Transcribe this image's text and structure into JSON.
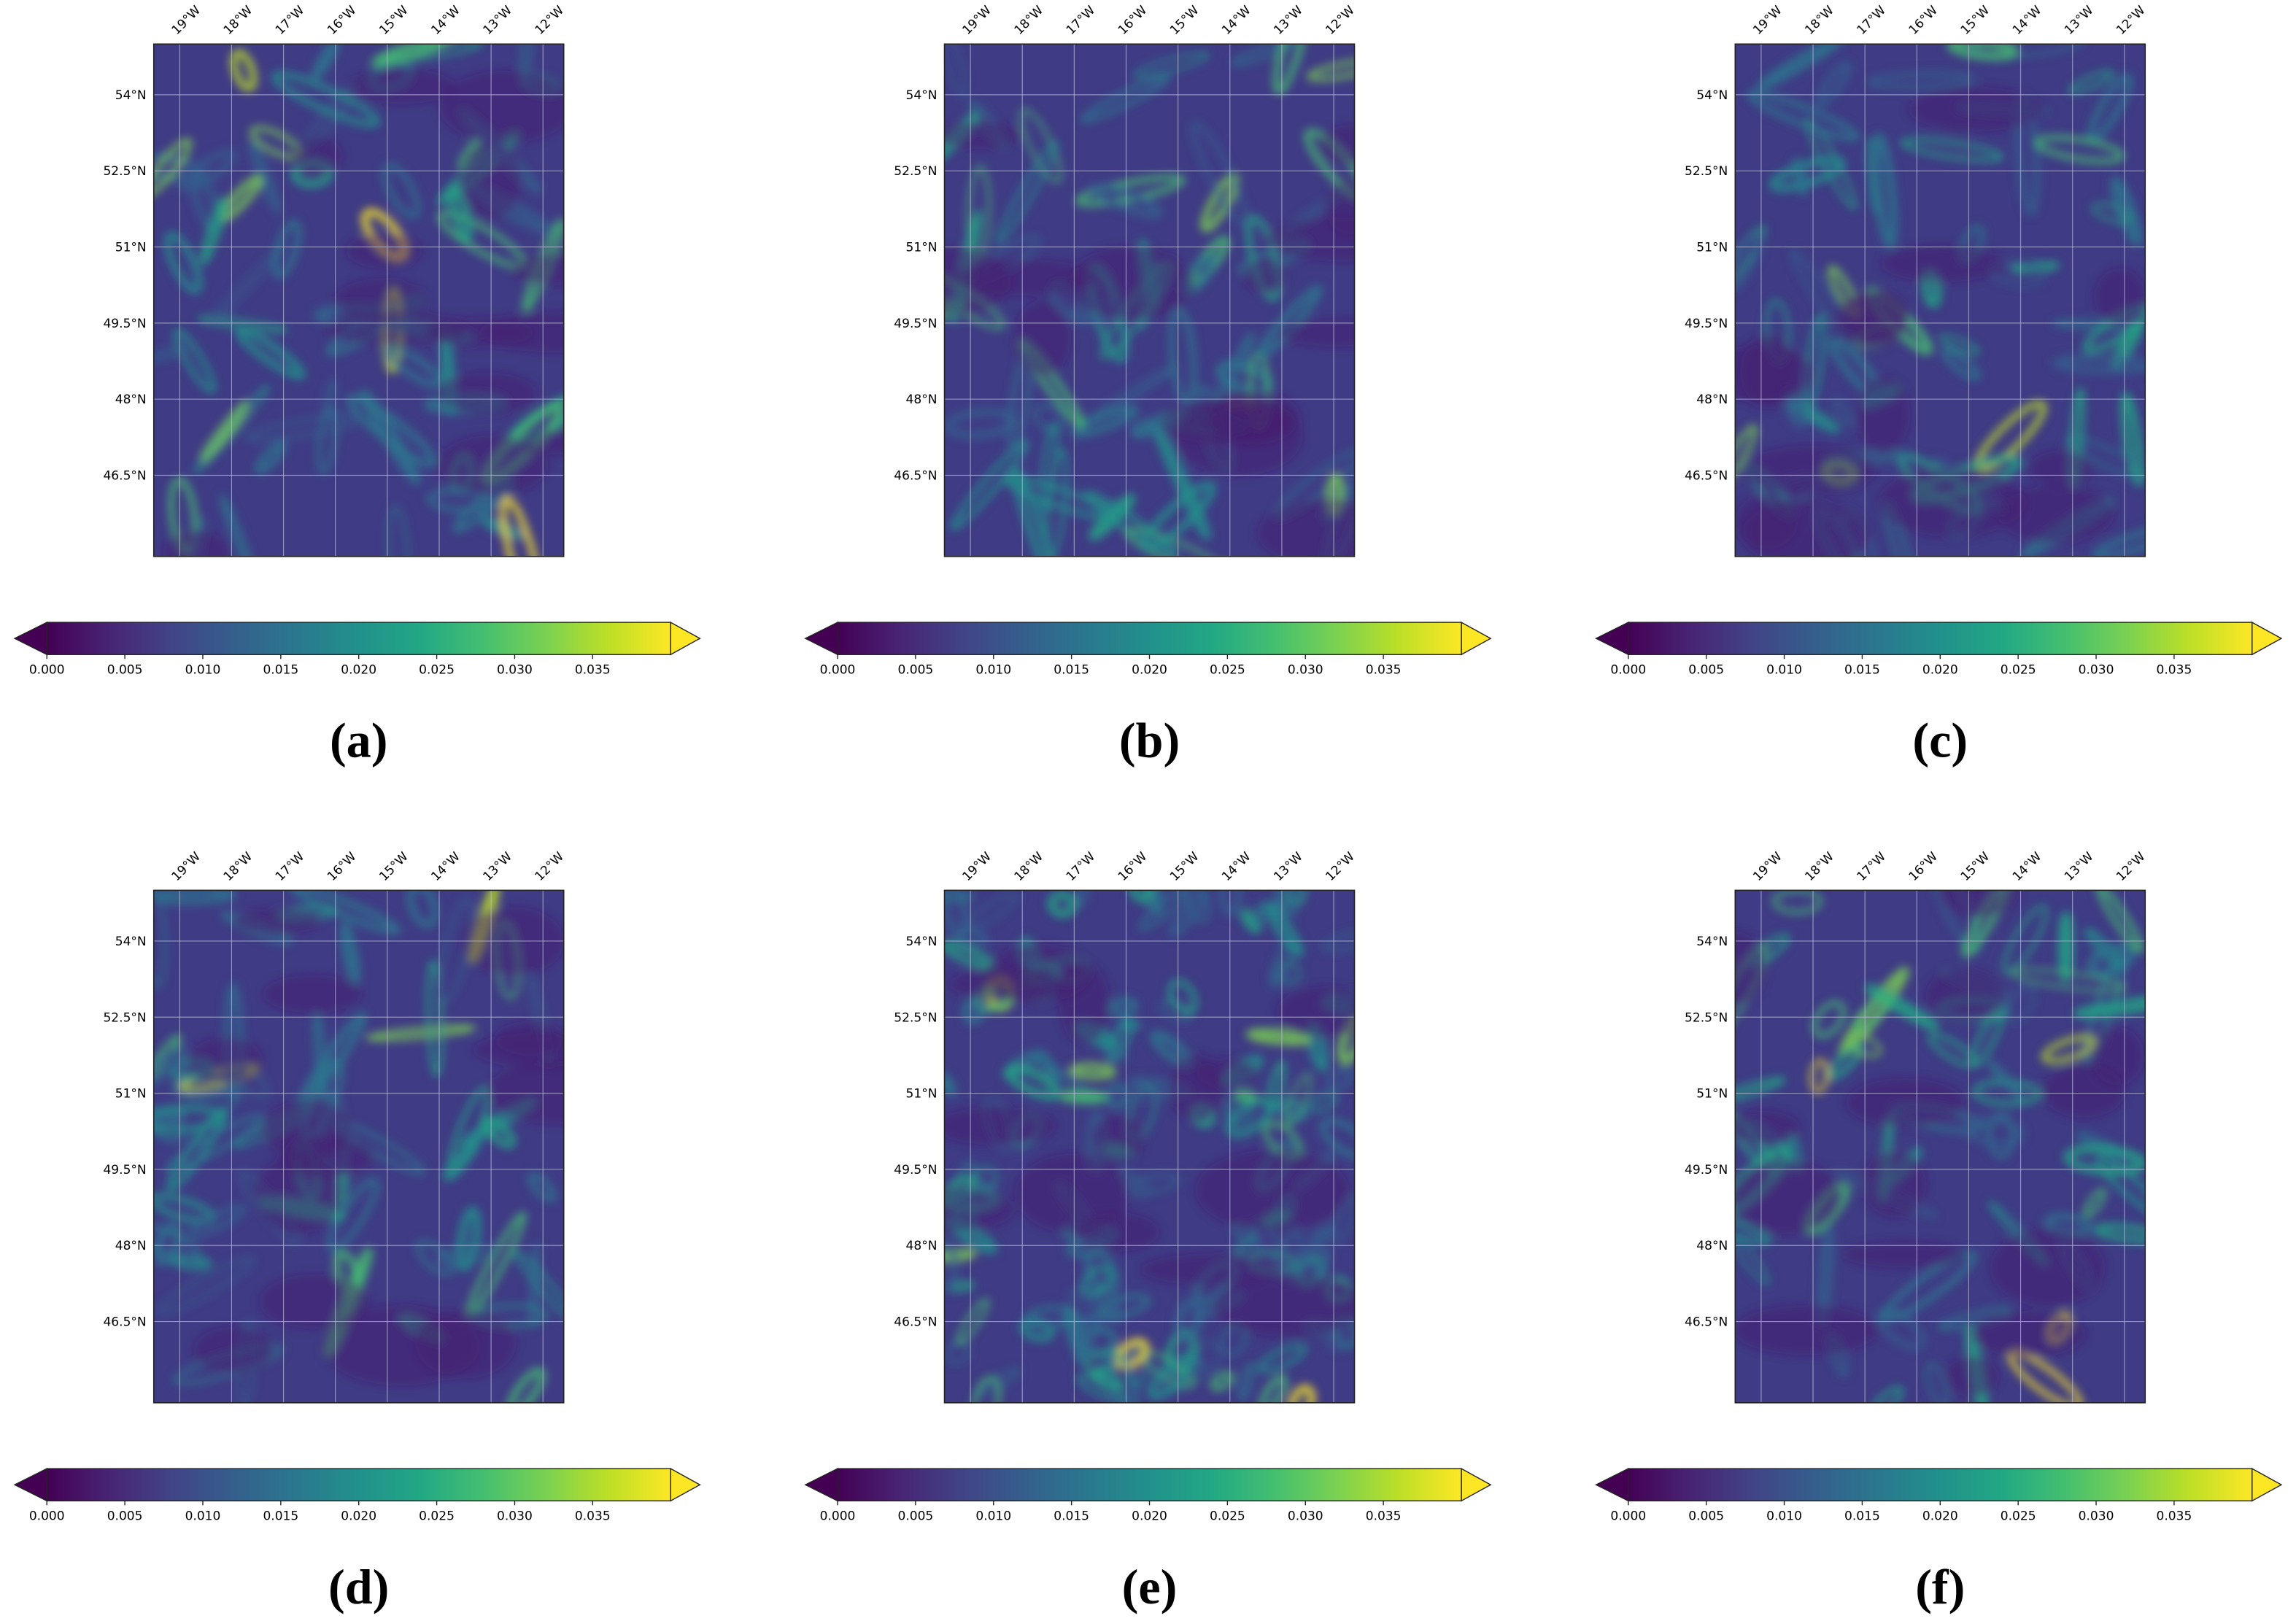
{
  "panels": [
    {
      "label": "(a)"
    },
    {
      "label": "(b)"
    },
    {
      "label": "(c)"
    },
    {
      "label": "(d)"
    },
    {
      "label": "(e)"
    },
    {
      "label": "(f)"
    }
  ],
  "map": {
    "xlim": [
      -19.5,
      -11.6
    ],
    "ylim": [
      44.9,
      55.0
    ],
    "lon_ticks": [
      {
        "value": -19,
        "label": "19°W"
      },
      {
        "value": -18,
        "label": "18°W"
      },
      {
        "value": -17,
        "label": "17°W"
      },
      {
        "value": -16,
        "label": "16°W"
      },
      {
        "value": -15,
        "label": "15°W"
      },
      {
        "value": -14,
        "label": "14°W"
      },
      {
        "value": -13,
        "label": "13°W"
      },
      {
        "value": -12,
        "label": "12°W"
      }
    ],
    "lat_ticks": [
      {
        "value": 54,
        "label": "54°N"
      },
      {
        "value": 52.5,
        "label": "52.5°N"
      },
      {
        "value": 51,
        "label": "51°N"
      },
      {
        "value": 49.5,
        "label": "49.5°N"
      },
      {
        "value": 48,
        "label": "48°N"
      },
      {
        "value": 46.5,
        "label": "46.5°N"
      }
    ]
  },
  "colorbar": {
    "lim": [
      0,
      0.04
    ],
    "ticks": [
      {
        "value": 0,
        "label": "0.000"
      },
      {
        "value": 0.005,
        "label": "0.005"
      },
      {
        "value": 0.01,
        "label": "0.010"
      },
      {
        "value": 0.015,
        "label": "0.015"
      },
      {
        "value": 0.02,
        "label": "0.020"
      },
      {
        "value": 0.025,
        "label": "0.025"
      },
      {
        "value": 0.03,
        "label": "0.030"
      },
      {
        "value": 0.035,
        "label": "0.035"
      }
    ]
  }
}
